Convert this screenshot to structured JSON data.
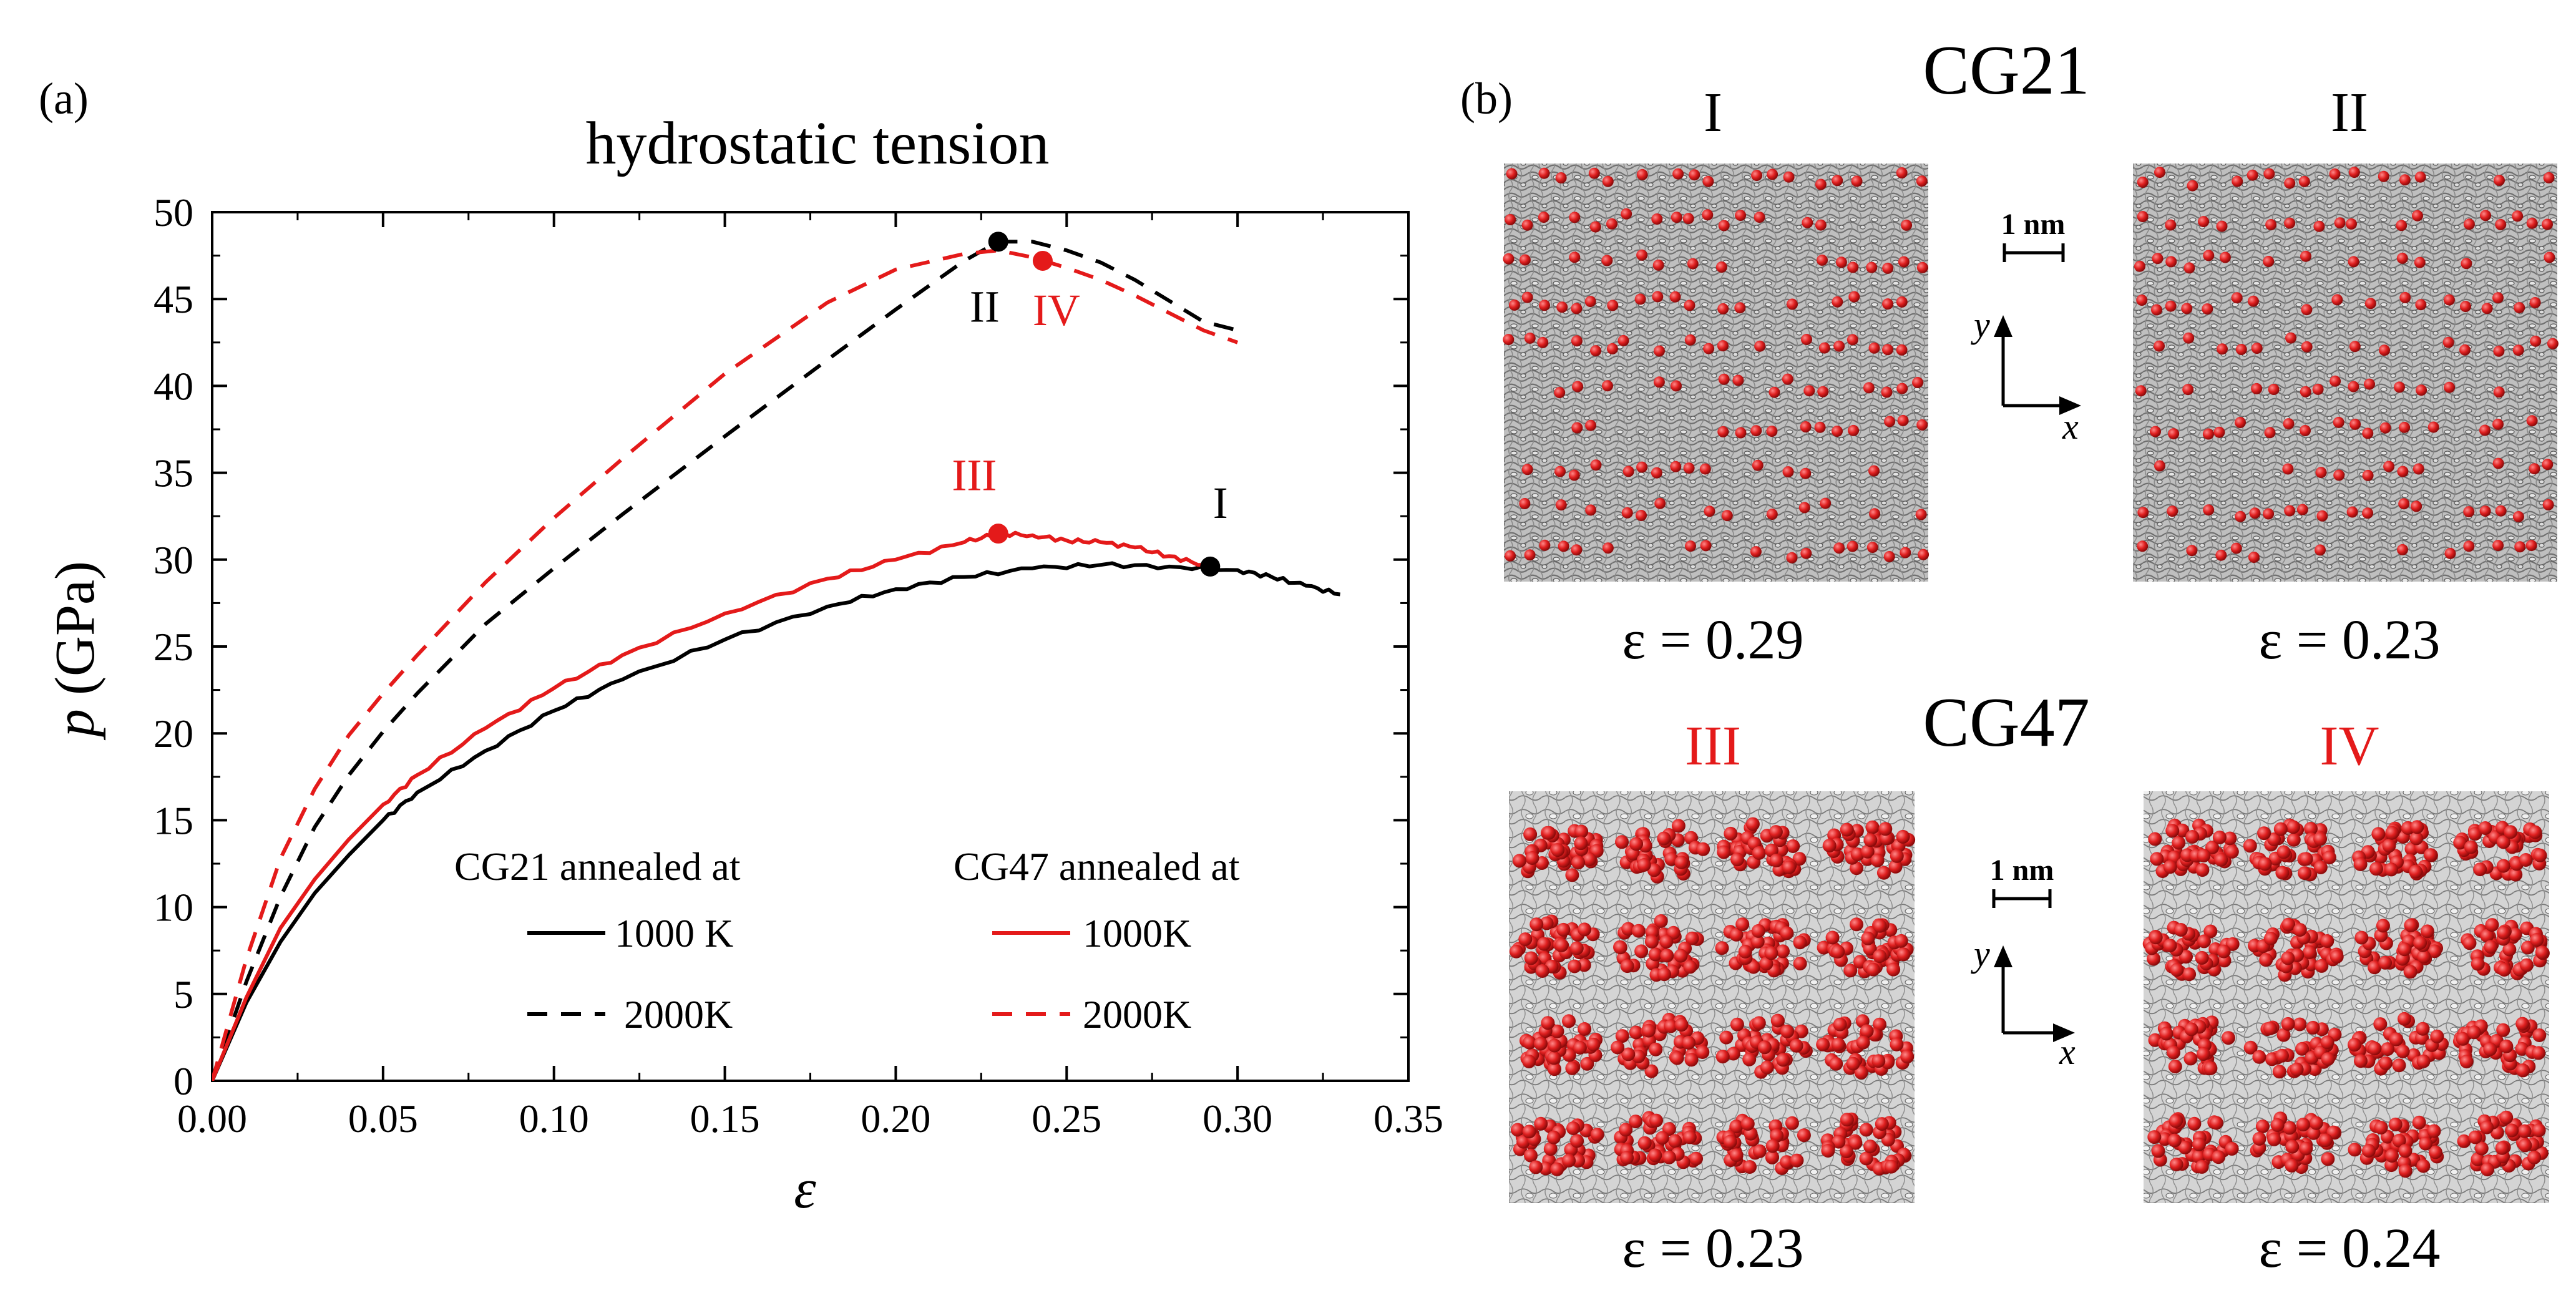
{
  "panel_a": {
    "label": "(a)",
    "chart_data": {
      "type": "line",
      "title": "hydrostatic tension",
      "xlabel": "ε",
      "ylabel_italic": "p",
      "ylabel_unit": "(GPa)",
      "xlim": [
        0,
        0.35
      ],
      "ylim": [
        0,
        50
      ],
      "x_ticks": [
        "0.00",
        "0.05",
        "0.10",
        "0.15",
        "0.20",
        "0.25",
        "0.30",
        "0.35"
      ],
      "y_ticks": [
        "0",
        "5",
        "10",
        "15",
        "20",
        "25",
        "30",
        "35",
        "40",
        "45",
        "50"
      ],
      "grid": false,
      "legend": {
        "group1_title": "CG21 annealed at",
        "group2_title": "CG47 annealed at",
        "entries": [
          "1000 K",
          "2000K",
          "1000K",
          "2000K"
        ]
      },
      "series": [
        {
          "name": "CG21 annealed at 1000 K",
          "color": "#000000",
          "dash": "solid",
          "x": [
            0,
            0.01,
            0.02,
            0.03,
            0.04,
            0.05,
            0.06,
            0.08,
            0.1,
            0.12,
            0.15,
            0.18,
            0.2,
            0.22,
            0.24,
            0.26,
            0.28,
            0.3,
            0.31,
            0.32,
            0.33
          ],
          "y": [
            0,
            4.5,
            8,
            10.8,
            13,
            15,
            16.6,
            19,
            21.3,
            23.1,
            25.4,
            27.3,
            28.3,
            29,
            29.5,
            29.7,
            29.6,
            29.4,
            29,
            28.5,
            28
          ]
        },
        {
          "name": "CG21 annealed at 2000K",
          "color": "#000000",
          "dash": "dashed",
          "x": [
            0,
            0.01,
            0.02,
            0.03,
            0.04,
            0.05,
            0.06,
            0.08,
            0.1,
            0.12,
            0.15,
            0.18,
            0.2,
            0.22,
            0.23,
            0.24,
            0.25,
            0.26,
            0.27,
            0.28,
            0.29,
            0.3
          ],
          "y": [
            0,
            5.7,
            10.6,
            14.6,
            17.6,
            20.1,
            22.3,
            26.3,
            29.5,
            32.6,
            37.1,
            41.5,
            44.4,
            47.2,
            48.3,
            48.3,
            47.8,
            47.1,
            46.1,
            44.9,
            43.7,
            43.2
          ]
        },
        {
          "name": "CG47 annealed at 1000K",
          "color": "#e41a1a",
          "dash": "solid",
          "x": [
            0,
            0.01,
            0.02,
            0.03,
            0.04,
            0.05,
            0.06,
            0.08,
            0.1,
            0.12,
            0.15,
            0.18,
            0.2,
            0.22,
            0.23,
            0.24,
            0.25,
            0.26,
            0.27,
            0.28,
            0.29
          ],
          "y": [
            0,
            4.8,
            8.8,
            11.6,
            13.9,
            15.9,
            17.6,
            20.3,
            22.6,
            24.5,
            26.9,
            28.9,
            30,
            31,
            31.5,
            31.4,
            31.1,
            31,
            30.7,
            30.2,
            29.7
          ]
        },
        {
          "name": "CG47 annealed at 2000K",
          "color": "#e41a1a",
          "dash": "dashed",
          "x": [
            0,
            0.01,
            0.02,
            0.03,
            0.04,
            0.05,
            0.06,
            0.08,
            0.1,
            0.12,
            0.15,
            0.18,
            0.2,
            0.22,
            0.23,
            0.24,
            0.25,
            0.26,
            0.27,
            0.28,
            0.29,
            0.3
          ],
          "y": [
            0,
            7,
            12.8,
            16.8,
            19.9,
            22.3,
            24.5,
            28.7,
            32.4,
            35.8,
            40.7,
            44.8,
            46.7,
            47.6,
            47.8,
            47.4,
            46.8,
            46.1,
            45.2,
            44.2,
            43.2,
            42.5
          ]
        }
      ],
      "markers": [
        {
          "label": "I",
          "x": 0.292,
          "y": 29.6,
          "color": "#000000",
          "label_dx": "0.003",
          "label_dy": "2.8"
        },
        {
          "label": "II",
          "x": 0.23,
          "y": 48.3,
          "color": "#000000",
          "label_dx": "-0.004",
          "label_dy": "-4.6"
        },
        {
          "label": "III",
          "x": 0.23,
          "y": 31.5,
          "color": "#e41a1a",
          "label_dx": "-0.007",
          "label_dy": "2.5"
        },
        {
          "label": "IV",
          "x": 0.243,
          "y": 47.2,
          "color": "#e41a1a",
          "label_dx": "0.004",
          "label_dy": "-3.7"
        }
      ]
    }
  },
  "panel_b": {
    "label": "(b)",
    "group_top": "CG21",
    "group_bottom": "CG47",
    "scale_bar": "1 nm",
    "axis_x": "x",
    "axis_y": "y",
    "snapshots": [
      {
        "id": "I",
        "strain": "ε = 0.29",
        "color": "#000000",
        "style": "sparse"
      },
      {
        "id": "II",
        "strain": "ε = 0.23",
        "color": "#000000",
        "style": "sparse"
      },
      {
        "id": "III",
        "strain": "ε = 0.23",
        "color": "#e41a1a",
        "style": "dense"
      },
      {
        "id": "IV",
        "strain": "ε = 0.24",
        "color": "#e41a1a",
        "style": "dense"
      }
    ]
  }
}
